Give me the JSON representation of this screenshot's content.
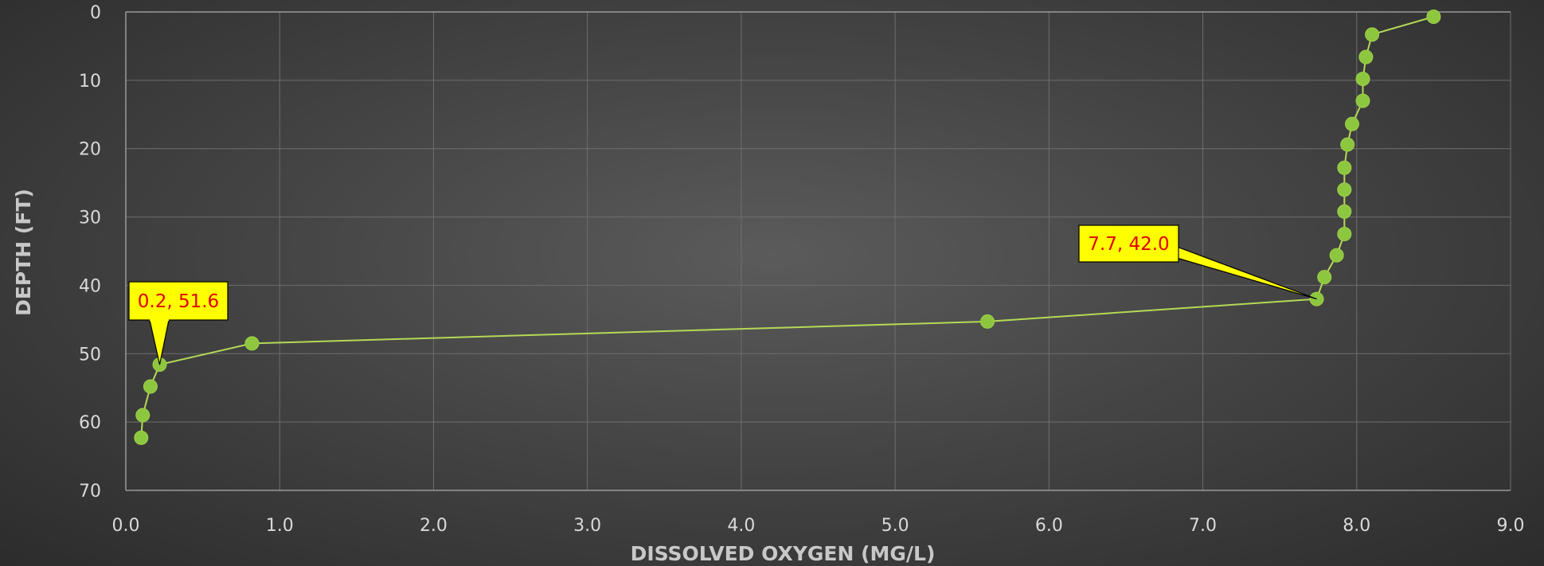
{
  "chart_data": {
    "type": "scatter",
    "title": "",
    "xlabel": "DISSOLVED OXYGEN (MG/L)",
    "ylabel": "DEPTH (FT)",
    "xlim": [
      0,
      9
    ],
    "ylim": [
      0,
      70
    ],
    "y_inverted": true,
    "grid": true,
    "x_ticks": [
      "0.0",
      "1.0",
      "2.0",
      "3.0",
      "4.0",
      "5.0",
      "6.0",
      "7.0",
      "8.0",
      "9.0"
    ],
    "y_ticks": [
      "0",
      "10",
      "20",
      "30",
      "40",
      "50",
      "60",
      "70"
    ],
    "marker_color": "#8dc63f",
    "line_color": "#b5d957",
    "series": [
      {
        "name": "",
        "x": [
          8.5,
          8.1,
          8.06,
          8.04,
          8.04,
          7.97,
          7.94,
          7.92,
          7.92,
          7.92,
          7.92,
          7.87,
          7.79,
          7.74,
          5.6,
          0.82,
          0.22,
          0.16,
          0.11,
          0.1
        ],
        "y": [
          0.7,
          3.3,
          6.6,
          9.8,
          13.0,
          16.4,
          19.4,
          22.8,
          26.0,
          29.2,
          32.5,
          35.6,
          38.8,
          42.0,
          45.3,
          48.5,
          51.6,
          54.8,
          59.0,
          62.3
        ]
      }
    ],
    "annotations": [
      {
        "text": "0.2, 51.6",
        "x": 0.22,
        "y": 51.6,
        "style": "callout",
        "bg": "#ffff00",
        "color": "#e00000"
      },
      {
        "text": "7.7, 42.0",
        "x": 7.74,
        "y": 42.0,
        "style": "callout",
        "bg": "#ffff00",
        "color": "#e00000"
      }
    ]
  }
}
